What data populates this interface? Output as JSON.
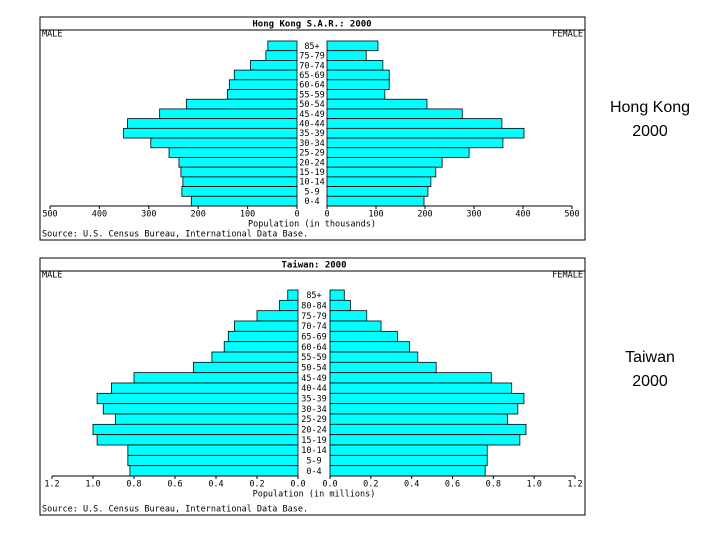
{
  "chart_data": [
    {
      "type": "pyramid",
      "title": "Hong Kong S.A.R.: 2000",
      "caption": [
        "Hong Kong",
        "2000"
      ],
      "xlabel": "Population (in thousands)",
      "source": "Source: U.S. Census Bureau, International Data Base.",
      "categories": [
        "85+",
        "75-79",
        "70-74",
        "65-69",
        "60-64",
        "55-59",
        "50-54",
        "45-49",
        "40-44",
        "35-39",
        "30-34",
        "25-29",
        "20-24",
        "15-19",
        "10-14",
        "5-9",
        "0-4"
      ],
      "series": [
        {
          "name": "MALE",
          "color": "#00ffff",
          "values": [
            59,
            63,
            94,
            127,
            137,
            141,
            224,
            278,
            343,
            351,
            296,
            259,
            239,
            235,
            231,
            233,
            214
          ]
        },
        {
          "name": "FEMALE",
          "color": "#00ffff",
          "values": [
            104,
            80,
            114,
            127,
            127,
            118,
            204,
            276,
            357,
            402,
            359,
            290,
            235,
            222,
            212,
            206,
            198
          ]
        }
      ],
      "xlim": [
        0,
        500
      ],
      "xticks": [
        0,
        100,
        200,
        300,
        400,
        500
      ]
    },
    {
      "type": "pyramid",
      "title": "Taiwan: 2000",
      "caption": [
        "Taiwan",
        "2000"
      ],
      "xlabel": "Population (in millions)",
      "source": "Source: U.S. Census Bureau, International Data Base.",
      "categories": [
        "85+",
        "80-84",
        "75-79",
        "70-74",
        "65-69",
        "60-64",
        "55-59",
        "50-54",
        "45-49",
        "40-44",
        "35-39",
        "30-34",
        "25-29",
        "20-24",
        "15-19",
        "10-14",
        "5-9",
        "0-4"
      ],
      "series": [
        {
          "name": "MALE",
          "color": "#00ffff",
          "values": [
            0.05,
            0.09,
            0.2,
            0.31,
            0.34,
            0.36,
            0.42,
            0.51,
            0.8,
            0.91,
            0.98,
            0.95,
            0.89,
            1.0,
            0.98,
            0.83,
            0.83,
            0.82
          ]
        },
        {
          "name": "FEMALE",
          "color": "#00ffff",
          "values": [
            0.07,
            0.1,
            0.18,
            0.25,
            0.33,
            0.39,
            0.43,
            0.52,
            0.79,
            0.89,
            0.95,
            0.92,
            0.87,
            0.96,
            0.93,
            0.77,
            0.77,
            0.76
          ]
        }
      ],
      "xlim": [
        0,
        1.2
      ],
      "xticks": [
        {
          "value": 0,
          "label": "0.0"
        },
        0.2,
        0.4,
        0.6,
        0.8,
        {
          "value": 1,
          "label": "1.0"
        },
        1.2
      ]
    }
  ]
}
